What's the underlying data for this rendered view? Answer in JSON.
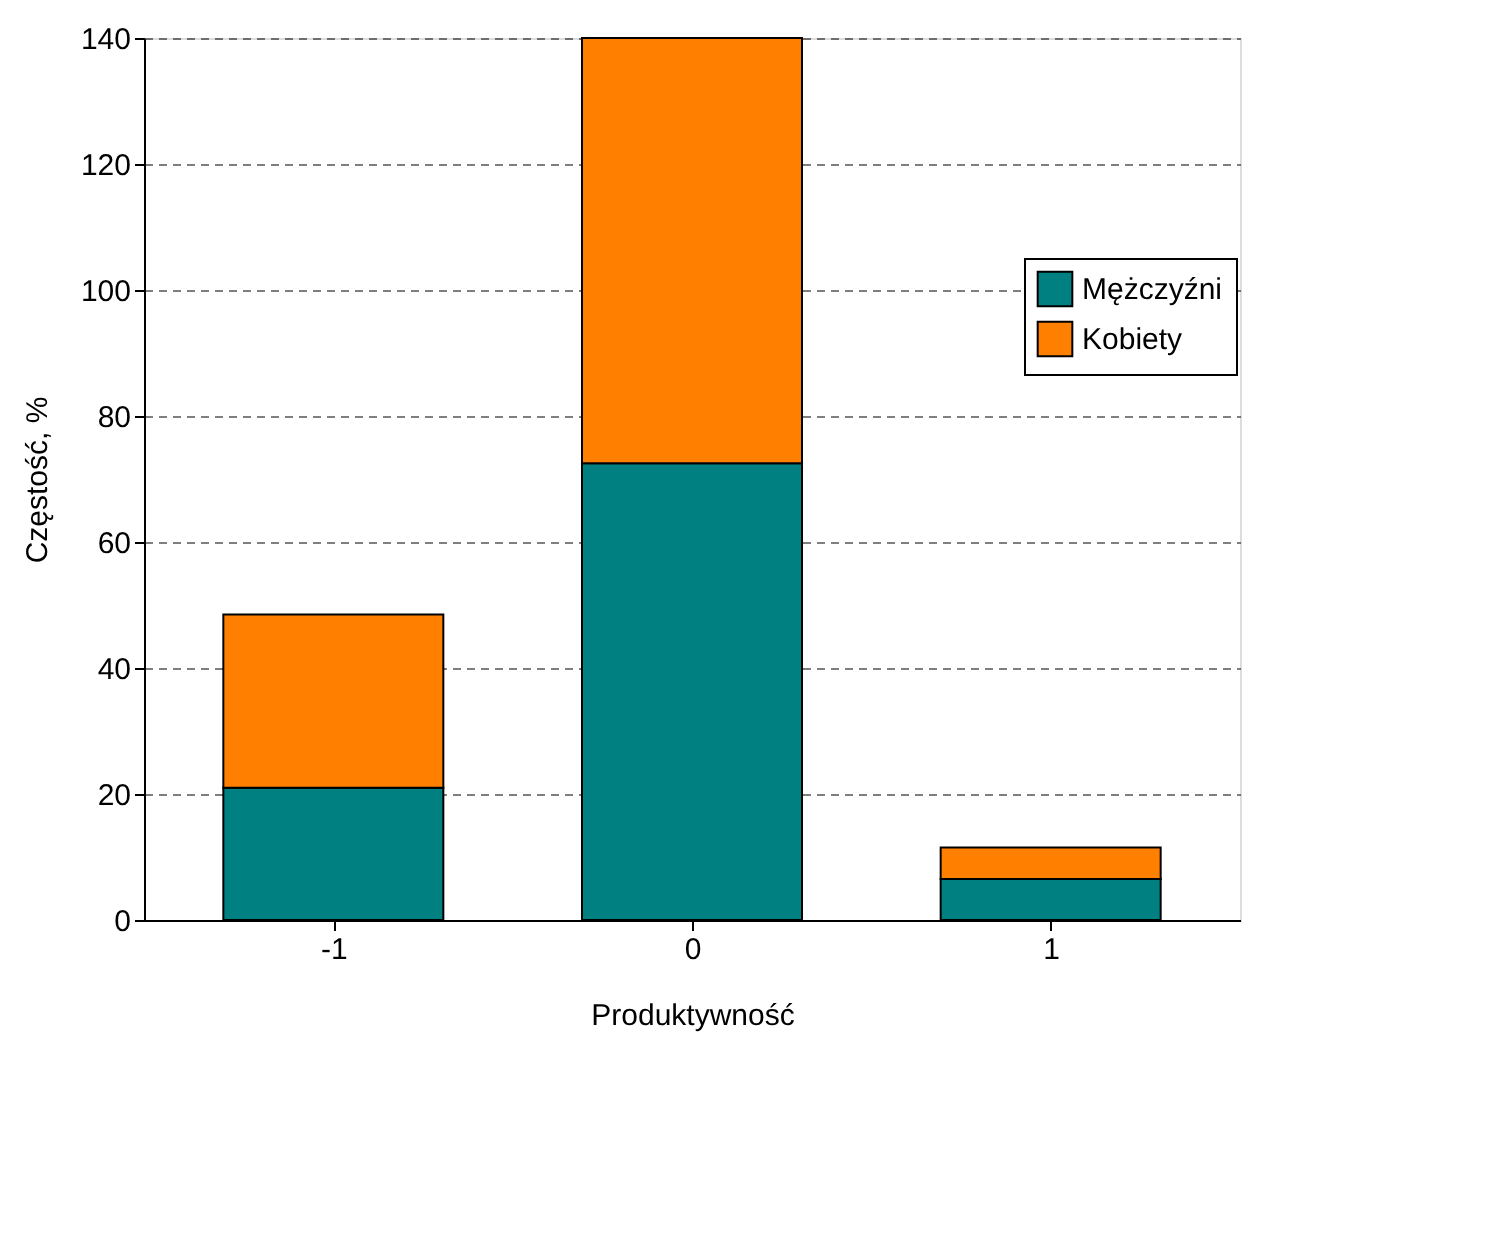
{
  "chart_data": {
    "type": "bar",
    "stacked": true,
    "xlabel": "Produktywność",
    "ylabel": "Częstość, %",
    "categories": [
      "-1",
      "0",
      "1"
    ],
    "series": [
      {
        "name": "Mężczyźni",
        "color": "#008080",
        "values": [
          21,
          72.5,
          6.5
        ]
      },
      {
        "name": "Kobiety",
        "color": "#ff8000",
        "values": [
          27.5,
          67.5,
          5
        ]
      }
    ],
    "ylim": [
      0,
      140
    ],
    "yticks": [
      0,
      20,
      40,
      60,
      80,
      100,
      120,
      140
    ],
    "grid": "y",
    "legend": "top right"
  }
}
